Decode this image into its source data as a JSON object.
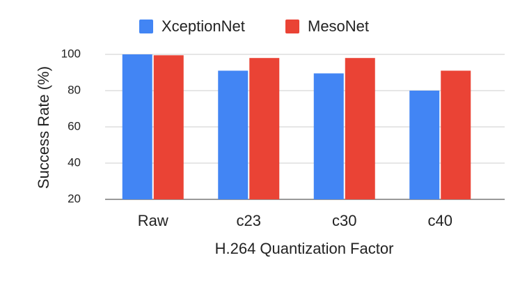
{
  "chart_data": {
    "type": "bar",
    "x_label": "H.264 Quantization Factor",
    "y_label": "Success Rate (%)",
    "categories": [
      "Raw",
      "c23",
      "c30",
      "c40"
    ],
    "series": [
      {
        "name": "XceptionNet",
        "color": "#4285f4",
        "values": [
          100,
          91,
          89.5,
          80
        ]
      },
      {
        "name": "MesoNet",
        "color": "#ea4335",
        "values": [
          99.5,
          98,
          98,
          91
        ]
      }
    ],
    "ylim": [
      20,
      100
    ],
    "yticks": [
      20,
      40,
      60,
      80,
      100
    ],
    "grid": true,
    "legend": "top"
  }
}
